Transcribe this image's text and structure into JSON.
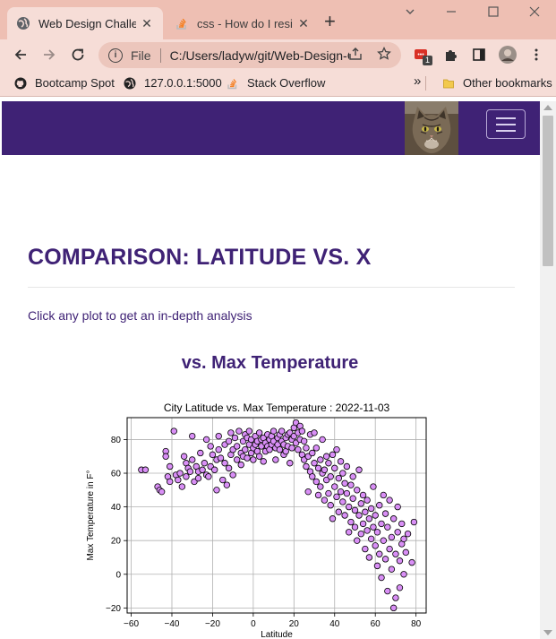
{
  "browser": {
    "tabs": [
      {
        "title": "Web Design Challenge",
        "icon": "globe-icon",
        "active": true
      },
      {
        "title": "css - How do I resize",
        "icon": "stackoverflow-icon",
        "active": false
      }
    ],
    "close_glyph": "✕",
    "new_tab_glyph": "+",
    "address": {
      "scheme": "File",
      "url": "C:/Users/ladyw/git/Web-Design-Challenge/..."
    },
    "extension_badge": "1",
    "bookmarks": [
      {
        "label": "Bootcamp Spot",
        "icon": "github-icon"
      },
      {
        "label": "127.0.0.1:5000",
        "icon": "globe-icon"
      },
      {
        "label": "Stack Overflow",
        "icon": "stackoverflow-icon"
      }
    ],
    "overflow_glyph": "»",
    "other_bookmarks": "Other bookmarks",
    "colors": {
      "tabstrip": "#eebfb3",
      "toolbar": "#f6ddd7"
    }
  },
  "site": {
    "navbar_color": "#3f2275",
    "heading": "COMPARISON: LATITUDE VS. X",
    "hint": "Click any plot to get an in-depth analysis",
    "subheading": "vs. Max Temperature"
  },
  "chart_data": {
    "type": "scatter",
    "title": "City Latitude vs. Max Temperature : 2022-11-03",
    "xlabel": "Latitude",
    "ylabel": "Max Temperature in F°",
    "xlim": [
      -62,
      85
    ],
    "ylim": [
      -23,
      93
    ],
    "xticks": [
      -60,
      -40,
      -20,
      0,
      20,
      40,
      60,
      80
    ],
    "yticks": [
      -20,
      0,
      20,
      40,
      60,
      80
    ],
    "grid": true,
    "marker_color": "#d98ff6",
    "edge_color": "#000000",
    "points": [
      [
        -55,
        62
      ],
      [
        -53,
        62
      ],
      [
        -47,
        52
      ],
      [
        -46,
        50
      ],
      [
        -45,
        49
      ],
      [
        -43,
        73
      ],
      [
        -43,
        70
      ],
      [
        -42,
        58
      ],
      [
        -41,
        55
      ],
      [
        -41,
        64
      ],
      [
        -39,
        85
      ],
      [
        -38,
        59
      ],
      [
        -37,
        56
      ],
      [
        -36,
        60
      ],
      [
        -35,
        52
      ],
      [
        -34,
        70
      ],
      [
        -33,
        66
      ],
      [
        -33,
        58
      ],
      [
        -32,
        63
      ],
      [
        -31,
        61
      ],
      [
        -30,
        68
      ],
      [
        -30,
        82
      ],
      [
        -29,
        55
      ],
      [
        -28,
        64
      ],
      [
        -27,
        61
      ],
      [
        -27,
        57
      ],
      [
        -26,
        72
      ],
      [
        -25,
        62
      ],
      [
        -24,
        66
      ],
      [
        -23,
        59
      ],
      [
        -23,
        80
      ],
      [
        -22,
        58
      ],
      [
        -21,
        76
      ],
      [
        -21,
        64
      ],
      [
        -20,
        71
      ],
      [
        -19,
        62
      ],
      [
        -18,
        68
      ],
      [
        -18,
        50
      ],
      [
        -17,
        74
      ],
      [
        -17,
        82
      ],
      [
        -16,
        69
      ],
      [
        -15,
        56
      ],
      [
        -14,
        77
      ],
      [
        -14,
        66
      ],
      [
        -13,
        53
      ],
      [
        -12,
        79
      ],
      [
        -12,
        63
      ],
      [
        -11,
        84
      ],
      [
        -11,
        71
      ],
      [
        -10,
        74
      ],
      [
        -10,
        59
      ],
      [
        -9,
        81
      ],
      [
        -8,
        68
      ],
      [
        -8,
        76
      ],
      [
        -7,
        85
      ],
      [
        -6,
        72
      ],
      [
        -6,
        65
      ],
      [
        -5,
        79
      ],
      [
        -5,
        70
      ],
      [
        -4,
        83
      ],
      [
        -4,
        74
      ],
      [
        -3,
        81
      ],
      [
        -3,
        69
      ],
      [
        -2,
        77
      ],
      [
        -2,
        85
      ],
      [
        -1,
        72
      ],
      [
        -1,
        80
      ],
      [
        0,
        75
      ],
      [
        0,
        68
      ],
      [
        1,
        82
      ],
      [
        1,
        77
      ],
      [
        2,
        79
      ],
      [
        2,
        73
      ],
      [
        3,
        84
      ],
      [
        3,
        70
      ],
      [
        4,
        76
      ],
      [
        4,
        80
      ],
      [
        5,
        81
      ],
      [
        5,
        67
      ],
      [
        6,
        78
      ],
      [
        6,
        73
      ],
      [
        7,
        83
      ],
      [
        7,
        76
      ],
      [
        8,
        80
      ],
      [
        8,
        74
      ],
      [
        9,
        82
      ],
      [
        9,
        77
      ],
      [
        10,
        79
      ],
      [
        10,
        85
      ],
      [
        11,
        75
      ],
      [
        11,
        68
      ],
      [
        12,
        81
      ],
      [
        12,
        77
      ],
      [
        13,
        83
      ],
      [
        13,
        74
      ],
      [
        14,
        79
      ],
      [
        14,
        85
      ],
      [
        15,
        71
      ],
      [
        15,
        77
      ],
      [
        16,
        81
      ],
      [
        16,
        73
      ],
      [
        17,
        76
      ],
      [
        17,
        83
      ],
      [
        18,
        84
      ],
      [
        18,
        66
      ],
      [
        19,
        80
      ],
      [
        19,
        75
      ],
      [
        20,
        82
      ],
      [
        20,
        87
      ],
      [
        21,
        90
      ],
      [
        21,
        78
      ],
      [
        22,
        84
      ],
      [
        22,
        74
      ],
      [
        23,
        88
      ],
      [
        23,
        80
      ],
      [
        24,
        85
      ],
      [
        24,
        71
      ],
      [
        25,
        68
      ],
      [
        25,
        79
      ],
      [
        26,
        64
      ],
      [
        26,
        75
      ],
      [
        27,
        70
      ],
      [
        27,
        49
      ],
      [
        28,
        83
      ],
      [
        28,
        61
      ],
      [
        29,
        58
      ],
      [
        29,
        72
      ],
      [
        30,
        66
      ],
      [
        30,
        84
      ],
      [
        31,
        55
      ],
      [
        31,
        75
      ],
      [
        32,
        63
      ],
      [
        32,
        47
      ],
      [
        33,
        68
      ],
      [
        33,
        52
      ],
      [
        34,
        60
      ],
      [
        34,
        80
      ],
      [
        35,
        62
      ],
      [
        35,
        44
      ],
      [
        36,
        70
      ],
      [
        36,
        56
      ],
      [
        37,
        48
      ],
      [
        37,
        66
      ],
      [
        38,
        58
      ],
      [
        38,
        41
      ],
      [
        39,
        71
      ],
      [
        39,
        33
      ],
      [
        40,
        63
      ],
      [
        40,
        52
      ],
      [
        41,
        46
      ],
      [
        41,
        74
      ],
      [
        42,
        57
      ],
      [
        42,
        37
      ],
      [
        43,
        67
      ],
      [
        43,
        49
      ],
      [
        44,
        43
      ],
      [
        44,
        60
      ],
      [
        45,
        35
      ],
      [
        45,
        54
      ],
      [
        46,
        48
      ],
      [
        46,
        64
      ],
      [
        47,
        40
      ],
      [
        47,
        25
      ],
      [
        48,
        53
      ],
      [
        48,
        31
      ],
      [
        49,
        45
      ],
      [
        49,
        58
      ],
      [
        50,
        28
      ],
      [
        50,
        38
      ],
      [
        51,
        50
      ],
      [
        51,
        20
      ],
      [
        52,
        35
      ],
      [
        52,
        62
      ],
      [
        53,
        42
      ],
      [
        53,
        24
      ],
      [
        54,
        30
      ],
      [
        54,
        47
      ],
      [
        55,
        37
      ],
      [
        55,
        15
      ],
      [
        56,
        26
      ],
      [
        56,
        44
      ],
      [
        57,
        33
      ],
      [
        57,
        10
      ],
      [
        58,
        21
      ],
      [
        58,
        39
      ],
      [
        59,
        28
      ],
      [
        59,
        52
      ],
      [
        60,
        17
      ],
      [
        60,
        35
      ],
      [
        61,
        25
      ],
      [
        61,
        5
      ],
      [
        62,
        41
      ],
      [
        62,
        12
      ],
      [
        63,
        30
      ],
      [
        63,
        -2
      ],
      [
        64,
        20
      ],
      [
        64,
        47
      ],
      [
        65,
        9
      ],
      [
        65,
        36
      ],
      [
        66,
        -10
      ],
      [
        66,
        28
      ],
      [
        67,
        15
      ],
      [
        67,
        44
      ],
      [
        68,
        3
      ],
      [
        68,
        22
      ],
      [
        69,
        -20
      ],
      [
        69,
        33
      ],
      [
        70,
        12
      ],
      [
        70,
        -14
      ],
      [
        71,
        25
      ],
      [
        71,
        40
      ],
      [
        72,
        8
      ],
      [
        72,
        -8
      ],
      [
        73,
        18
      ],
      [
        73,
        30
      ],
      [
        74,
        0
      ],
      [
        74,
        21
      ],
      [
        75,
        13
      ],
      [
        76,
        24
      ],
      [
        78,
        7
      ],
      [
        79,
        31
      ]
    ]
  }
}
